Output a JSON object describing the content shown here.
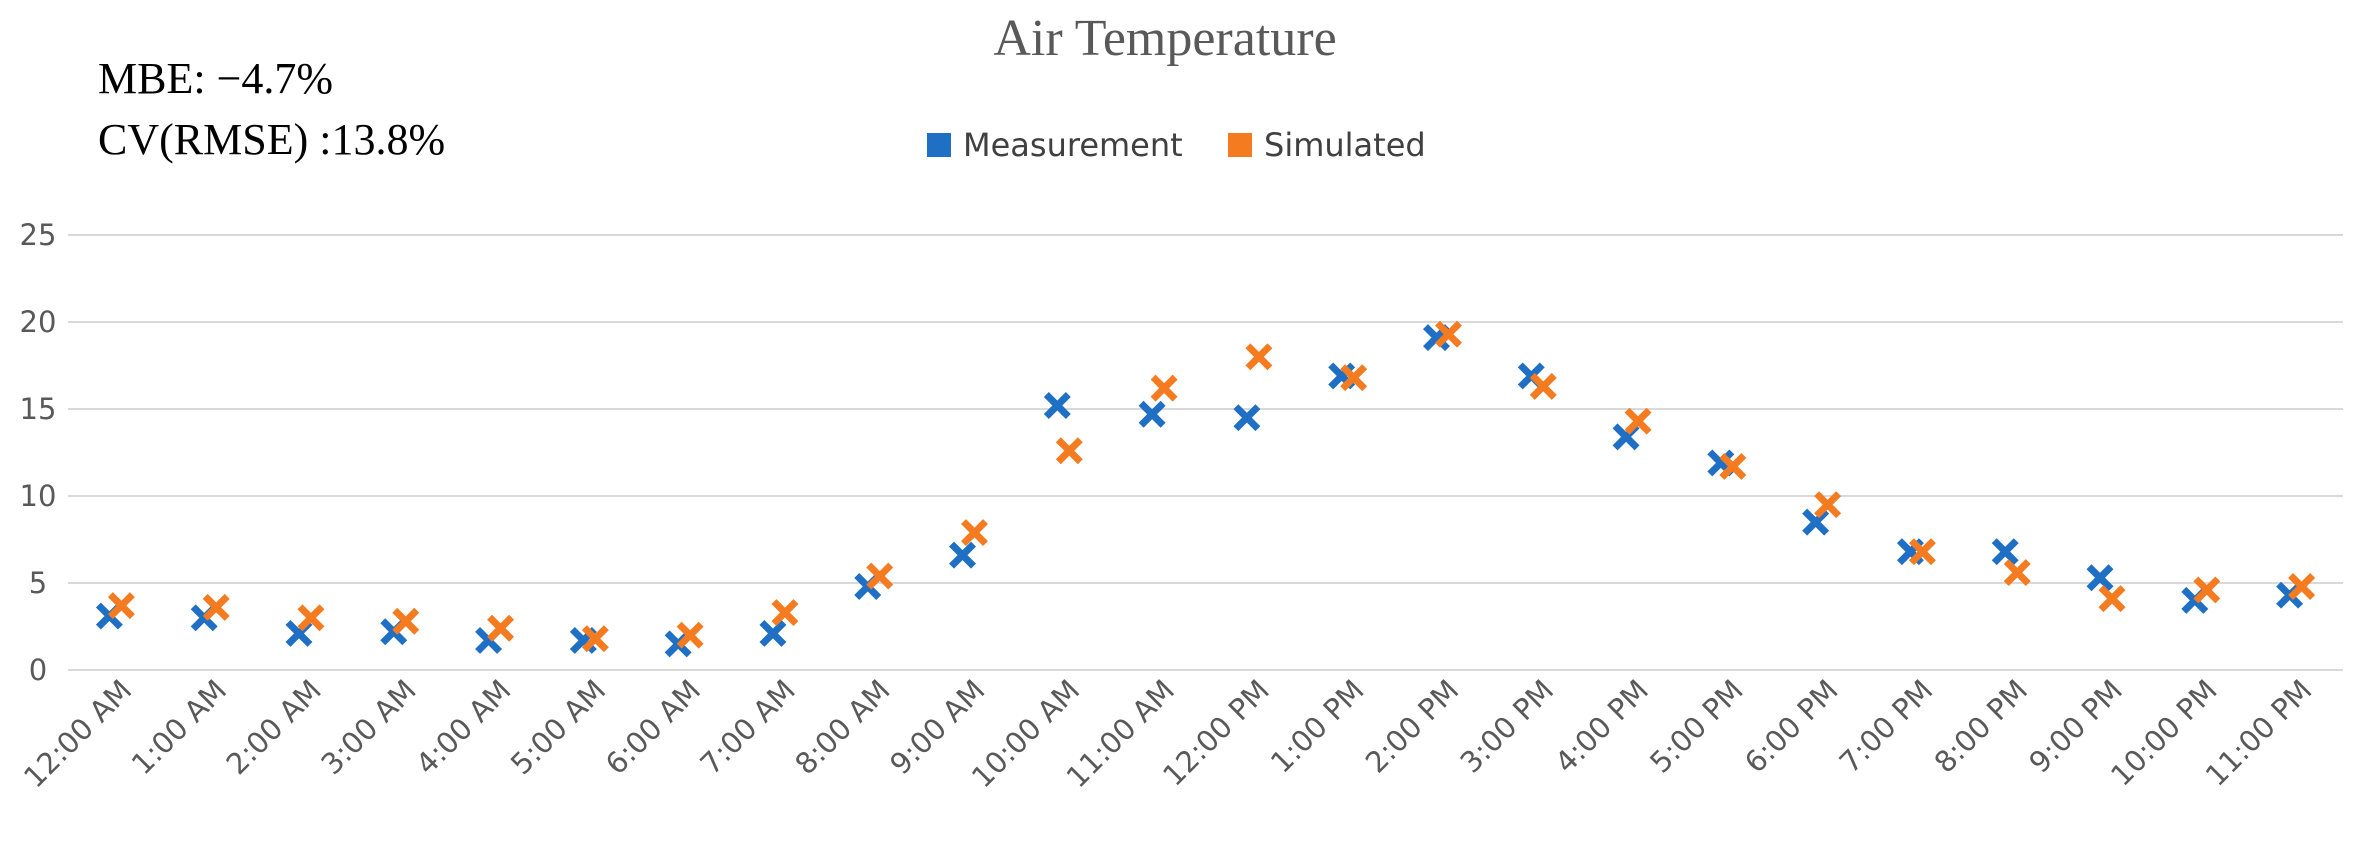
{
  "chart_data": {
    "type": "scatter",
    "title": "Air Temperature",
    "annotations": [
      "MBE: −4.7%",
      "CV(RMSE) :13.8%"
    ],
    "legend_position": "top-center",
    "categories": [
      "12:00 AM",
      "1:00 AM",
      "2:00 AM",
      "3:00 AM",
      "4:00 AM",
      "5:00 AM",
      "6:00 AM",
      "7:00 AM",
      "8:00 AM",
      "9:00 AM",
      "10:00 AM",
      "11:00 AM",
      "12:00 PM",
      "1:00 PM",
      "2:00 PM",
      "3:00 PM",
      "4:00 PM",
      "5:00 PM",
      "6:00 PM",
      "7:00 PM",
      "8:00 PM",
      "9:00 PM",
      "10:00 PM",
      "11:00 PM"
    ],
    "ylim": [
      0,
      25
    ],
    "yticks": [
      0,
      5,
      10,
      15,
      20,
      25
    ],
    "grid": true,
    "xlabel": "",
    "ylabel": "",
    "series": [
      {
        "name": "Measurement",
        "color": "#1f6fc5",
        "values": [
          3.1,
          3.0,
          2.1,
          2.2,
          1.7,
          1.7,
          1.5,
          2.1,
          4.8,
          6.6,
          15.2,
          14.7,
          14.5,
          16.9,
          19.1,
          16.9,
          13.4,
          11.9,
          8.5,
          6.8,
          6.8,
          5.3,
          4.0,
          4.3
        ]
      },
      {
        "name": "Simulated",
        "color": "#f47b20",
        "values": [
          3.7,
          3.6,
          3.0,
          2.8,
          2.4,
          1.8,
          2.0,
          3.3,
          5.4,
          7.9,
          12.6,
          16.2,
          18.0,
          16.8,
          19.3,
          16.3,
          14.3,
          11.7,
          9.5,
          6.8,
          5.6,
          4.1,
          4.6,
          4.8
        ]
      }
    ]
  }
}
